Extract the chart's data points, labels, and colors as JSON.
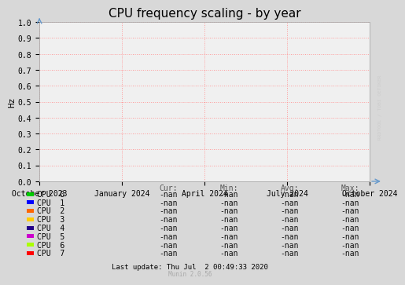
{
  "title": "CPU frequency scaling - by year",
  "ylabel": "Hz",
  "ylim": [
    0.0,
    1.0
  ],
  "yticks": [
    0.0,
    0.1,
    0.2,
    0.3,
    0.4,
    0.5,
    0.6,
    0.7,
    0.8,
    0.9,
    1.0
  ],
  "x_tick_labels": [
    "October 2023",
    "January 2024",
    "April 2024",
    "July 2024",
    "October 2024"
  ],
  "background_color": "#d8d8d8",
  "plot_bg_color": "#f0f0f0",
  "grid_color": "#ff9999",
  "title_fontsize": 11,
  "tick_fontsize": 7,
  "ylabel_fontsize": 8,
  "cpus": [
    "CPU  0",
    "CPU  1",
    "CPU  2",
    "CPU  3",
    "CPU  4",
    "CPU  5",
    "CPU  6",
    "CPU  7"
  ],
  "cpu_colors": [
    "#00cc00",
    "#0000ff",
    "#ff6600",
    "#ffcc00",
    "#220088",
    "#cc00cc",
    "#aaff00",
    "#ff0000"
  ],
  "legend_headers": [
    "Cur:",
    "Min:",
    "Avg:",
    "Max:"
  ],
  "watermark": "RRDTOOL / TOBI OETIKER",
  "footer_update": "Last update: Thu Jul  2 00:49:33 2020",
  "footer_munin": "Munin 2.0.56",
  "arrow_color": "#6699cc",
  "watermark_color": "#cccccc",
  "header_color": "#555555",
  "nan_color": "#111111"
}
